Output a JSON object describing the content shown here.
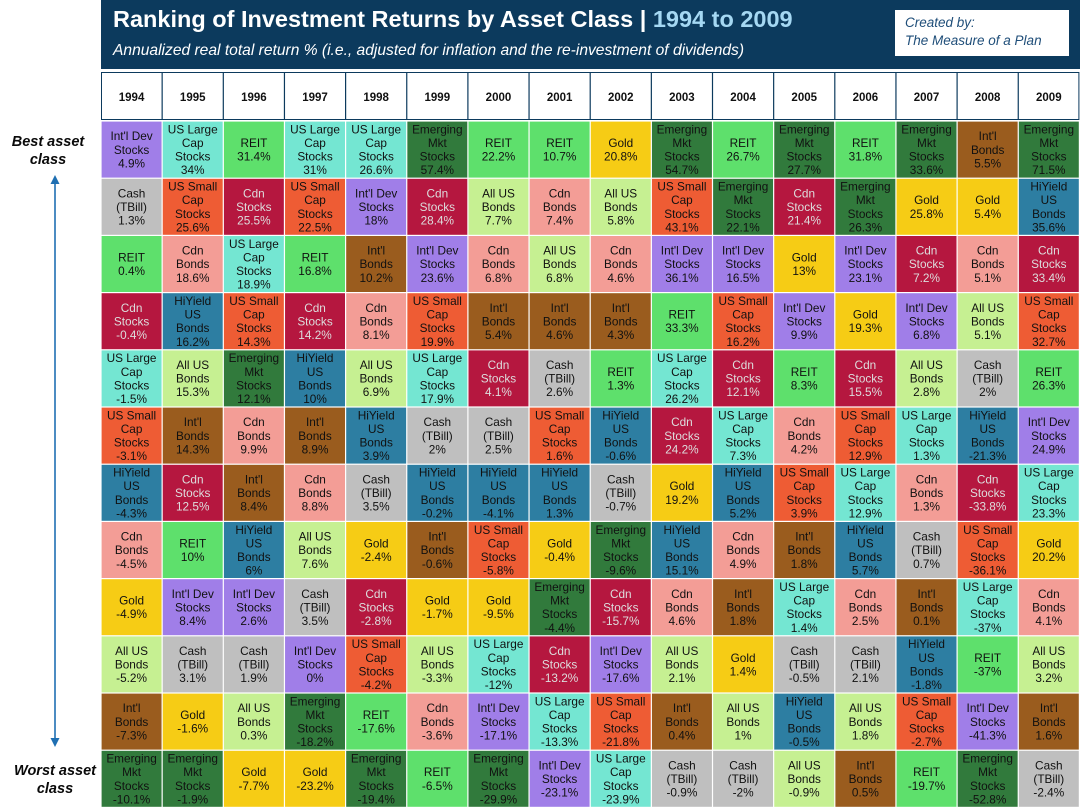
{
  "header": {
    "title_main": "Ranking of Investment Returns by Asset Class | ",
    "title_years": "1994 to 2009",
    "subtitle": "Annualized real total return % (i.e., adjusted for inflation and the re-investment of dividends)",
    "credit_line1": "Created by:",
    "credit_line2": "The Measure of a Plan"
  },
  "side_labels": {
    "best": "Best asset\nclass",
    "worst": "Worst asset\nclass"
  },
  "asset_colors": {
    "Int'l Dev Stocks": "#a07ee8",
    "US Large Cap Stocks": "#74e6d2",
    "REIT": "#5ee06c",
    "Emerging Mkt Stocks": "#317a3c",
    "Int'l Bonds": "#9a5c1e",
    "Cash (TBill)": "#bfbfbf",
    "US Small Cap Stocks": "#ee5c34",
    "Cdn Stocks": "#b5173f",
    "All US Bonds": "#c6f092",
    "Gold": "#f6cc15",
    "HiYield US Bonds": "#2d7ea2",
    "Cdn Bonds": "#f39d96"
  },
  "light_text_assets": [
    "Cdn Stocks"
  ],
  "chart_data": {
    "type": "table",
    "title": "Ranking of Investment Returns by Asset Class | 1994 to 2009",
    "subtitle": "Annualized real total return % (i.e., adjusted for inflation and the re-investment of dividends)",
    "years": [
      "1994",
      "1995",
      "1996",
      "1997",
      "1998",
      "1999",
      "2000",
      "2001",
      "2002",
      "2003",
      "2004",
      "2005",
      "2006",
      "2007",
      "2008",
      "2009"
    ],
    "columns": [
      [
        [
          "Int'l Dev Stocks",
          "4.9%"
        ],
        [
          "Cash (TBill)",
          "1.3%"
        ],
        [
          "REIT",
          "0.4%"
        ],
        [
          "Cdn Stocks",
          "-0.4%"
        ],
        [
          "US Large Cap Stocks",
          "-1.5%"
        ],
        [
          "US Small Cap Stocks",
          "-3.1%"
        ],
        [
          "HiYield US Bonds",
          "-4.3%"
        ],
        [
          "Cdn Bonds",
          "-4.5%"
        ],
        [
          "Gold",
          "-4.9%"
        ],
        [
          "All US Bonds",
          "-5.2%"
        ],
        [
          "Int'l Bonds",
          "-7.3%"
        ],
        [
          "Emerging Mkt Stocks",
          "-10.1%"
        ]
      ],
      [
        [
          "US Large Cap Stocks",
          "34%"
        ],
        [
          "US Small Cap Stocks",
          "25.6%"
        ],
        [
          "Cdn Bonds",
          "18.6%"
        ],
        [
          "HiYield US Bonds",
          "16.2%"
        ],
        [
          "All US Bonds",
          "15.3%"
        ],
        [
          "Int'l Bonds",
          "14.3%"
        ],
        [
          "Cdn Stocks",
          "12.5%"
        ],
        [
          "REIT",
          "10%"
        ],
        [
          "Int'l Dev Stocks",
          "8.4%"
        ],
        [
          "Cash (TBill)",
          "3.1%"
        ],
        [
          "Gold",
          "-1.6%"
        ],
        [
          "Emerging Mkt Stocks",
          "-1.9%"
        ]
      ],
      [
        [
          "REIT",
          "31.4%"
        ],
        [
          "Cdn Stocks",
          "25.5%"
        ],
        [
          "US Large Cap Stocks",
          "18.9%"
        ],
        [
          "US Small Cap Stocks",
          "14.3%"
        ],
        [
          "Emerging Mkt Stocks",
          "12.1%"
        ],
        [
          "Cdn Bonds",
          "9.9%"
        ],
        [
          "Int'l Bonds",
          "8.4%"
        ],
        [
          "HiYield US Bonds",
          "6%"
        ],
        [
          "Int'l Dev Stocks",
          "2.6%"
        ],
        [
          "Cash (TBill)",
          "1.9%"
        ],
        [
          "All US Bonds",
          "0.3%"
        ],
        [
          "Gold",
          "-7.7%"
        ]
      ],
      [
        [
          "US Large Cap Stocks",
          "31%"
        ],
        [
          "US Small Cap Stocks",
          "22.5%"
        ],
        [
          "REIT",
          "16.8%"
        ],
        [
          "Cdn Stocks",
          "14.2%"
        ],
        [
          "HiYield US Bonds",
          "10%"
        ],
        [
          "Int'l Bonds",
          "8.9%"
        ],
        [
          "Cdn Bonds",
          "8.8%"
        ],
        [
          "All US Bonds",
          "7.6%"
        ],
        [
          "Cash (TBill)",
          "3.5%"
        ],
        [
          "Int'l Dev Stocks",
          "0%"
        ],
        [
          "Emerging Mkt Stocks",
          "-18.2%"
        ],
        [
          "Gold",
          "-23.2%"
        ]
      ],
      [
        [
          "US Large Cap Stocks",
          "26.6%"
        ],
        [
          "Int'l Dev Stocks",
          "18%"
        ],
        [
          "Int'l Bonds",
          "10.2%"
        ],
        [
          "Cdn Bonds",
          "8.1%"
        ],
        [
          "All US Bonds",
          "6.9%"
        ],
        [
          "HiYield US Bonds",
          "3.9%"
        ],
        [
          "Cash (TBill)",
          "3.5%"
        ],
        [
          "Gold",
          "-2.4%"
        ],
        [
          "Cdn Stocks",
          "-2.8%"
        ],
        [
          "US Small Cap Stocks",
          "-4.2%"
        ],
        [
          "REIT",
          "-17.6%"
        ],
        [
          "Emerging Mkt Stocks",
          "-19.4%"
        ]
      ],
      [
        [
          "Emerging Mkt Stocks",
          "57.4%"
        ],
        [
          "Cdn Stocks",
          "28.4%"
        ],
        [
          "Int'l Dev Stocks",
          "23.6%"
        ],
        [
          "US Small Cap Stocks",
          "19.9%"
        ],
        [
          "US Large Cap Stocks",
          "17.9%"
        ],
        [
          "Cash (TBill)",
          "2%"
        ],
        [
          "HiYield US Bonds",
          "-0.2%"
        ],
        [
          "Int'l Bonds",
          "-0.6%"
        ],
        [
          "Gold",
          "-1.7%"
        ],
        [
          "All US Bonds",
          "-3.3%"
        ],
        [
          "Cdn Bonds",
          "-3.6%"
        ],
        [
          "REIT",
          "-6.5%"
        ]
      ],
      [
        [
          "REIT",
          "22.2%"
        ],
        [
          "All US Bonds",
          "7.7%"
        ],
        [
          "Cdn Bonds",
          "6.8%"
        ],
        [
          "Int'l Bonds",
          "5.4%"
        ],
        [
          "Cdn Stocks",
          "4.1%"
        ],
        [
          "Cash (TBill)",
          "2.5%"
        ],
        [
          "HiYield US Bonds",
          "-4.1%"
        ],
        [
          "US Small Cap Stocks",
          "-5.8%"
        ],
        [
          "Gold",
          "-9.5%"
        ],
        [
          "US Large Cap Stocks",
          "-12%"
        ],
        [
          "Int'l Dev Stocks",
          "-17.1%"
        ],
        [
          "Emerging Mkt Stocks",
          "-29.9%"
        ]
      ],
      [
        [
          "REIT",
          "10.7%"
        ],
        [
          "Cdn Bonds",
          "7.4%"
        ],
        [
          "All US Bonds",
          "6.8%"
        ],
        [
          "Int'l Bonds",
          "4.6%"
        ],
        [
          "Cash (TBill)",
          "2.6%"
        ],
        [
          "US Small Cap Stocks",
          "1.6%"
        ],
        [
          "HiYield US Bonds",
          "1.3%"
        ],
        [
          "Gold",
          "-0.4%"
        ],
        [
          "Emerging Mkt Stocks",
          "-4.4%"
        ],
        [
          "Cdn Stocks",
          "-13.2%"
        ],
        [
          "US Large Cap Stocks",
          "-13.3%"
        ],
        [
          "Int'l Dev Stocks",
          "-23.1%"
        ]
      ],
      [
        [
          "Gold",
          "20.8%"
        ],
        [
          "All US Bonds",
          "5.8%"
        ],
        [
          "Cdn Bonds",
          "4.6%"
        ],
        [
          "Int'l Bonds",
          "4.3%"
        ],
        [
          "REIT",
          "1.3%"
        ],
        [
          "HiYield US Bonds",
          "-0.6%"
        ],
        [
          "Cash (TBill)",
          "-0.7%"
        ],
        [
          "Emerging Mkt Stocks",
          "-9.6%"
        ],
        [
          "Cdn Stocks",
          "-15.7%"
        ],
        [
          "Int'l Dev Stocks",
          "-17.6%"
        ],
        [
          "US Small Cap Stocks",
          "-21.8%"
        ],
        [
          "US Large Cap Stocks",
          "-23.9%"
        ]
      ],
      [
        [
          "Emerging Mkt Stocks",
          "54.7%"
        ],
        [
          "US Small Cap Stocks",
          "43.1%"
        ],
        [
          "Int'l Dev Stocks",
          "36.1%"
        ],
        [
          "REIT",
          "33.3%"
        ],
        [
          "US Large Cap Stocks",
          "26.2%"
        ],
        [
          "Cdn Stocks",
          "24.2%"
        ],
        [
          "Gold",
          "19.2%"
        ],
        [
          "HiYield US Bonds",
          "15.1%"
        ],
        [
          "Cdn Bonds",
          "4.6%"
        ],
        [
          "All US Bonds",
          "2.1%"
        ],
        [
          "Int'l Bonds",
          "0.4%"
        ],
        [
          "Cash (TBill)",
          "-0.9%"
        ]
      ],
      [
        [
          "REIT",
          "26.7%"
        ],
        [
          "Emerging Mkt Stocks",
          "22.1%"
        ],
        [
          "Int'l Dev Stocks",
          "16.5%"
        ],
        [
          "US Small Cap Stocks",
          "16.2%"
        ],
        [
          "Cdn Stocks",
          "12.1%"
        ],
        [
          "US Large Cap Stocks",
          "7.3%"
        ],
        [
          "HiYield US Bonds",
          "5.2%"
        ],
        [
          "Cdn Bonds",
          "4.9%"
        ],
        [
          "Int'l Bonds",
          "1.8%"
        ],
        [
          "Gold",
          "1.4%"
        ],
        [
          "All US Bonds",
          "1%"
        ],
        [
          "Cash (TBill)",
          "-2%"
        ]
      ],
      [
        [
          "Emerging Mkt Stocks",
          "27.7%"
        ],
        [
          "Cdn Stocks",
          "21.4%"
        ],
        [
          "Gold",
          "13%"
        ],
        [
          "Int'l Dev Stocks",
          "9.9%"
        ],
        [
          "REIT",
          "8.3%"
        ],
        [
          "Cdn Bonds",
          "4.2%"
        ],
        [
          "US Small Cap Stocks",
          "3.9%"
        ],
        [
          "Int'l Bonds",
          "1.8%"
        ],
        [
          "US Large Cap Stocks",
          "1.4%"
        ],
        [
          "Cash (TBill)",
          "-0.5%"
        ],
        [
          "HiYield US Bonds",
          "-0.5%"
        ],
        [
          "All US Bonds",
          "-0.9%"
        ]
      ],
      [
        [
          "REIT",
          "31.8%"
        ],
        [
          "Emerging Mkt Stocks",
          "26.3%"
        ],
        [
          "Int'l Dev Stocks",
          "23.1%"
        ],
        [
          "Gold",
          "19.3%"
        ],
        [
          "Cdn Stocks",
          "15.5%"
        ],
        [
          "US Small Cap Stocks",
          "12.9%"
        ],
        [
          "US Large Cap Stocks",
          "12.9%"
        ],
        [
          "HiYield US Bonds",
          "5.7%"
        ],
        [
          "Cdn Bonds",
          "2.5%"
        ],
        [
          "Cash (TBill)",
          "2.1%"
        ],
        [
          "All US Bonds",
          "1.8%"
        ],
        [
          "Int'l Bonds",
          "0.5%"
        ]
      ],
      [
        [
          "Emerging Mkt Stocks",
          "33.6%"
        ],
        [
          "Gold",
          "25.8%"
        ],
        [
          "Cdn Stocks",
          "7.2%"
        ],
        [
          "Int'l Dev Stocks",
          "6.8%"
        ],
        [
          "All US Bonds",
          "2.8%"
        ],
        [
          "US Large Cap Stocks",
          "1.3%"
        ],
        [
          "Cdn Bonds",
          "1.3%"
        ],
        [
          "Cash (TBill)",
          "0.7%"
        ],
        [
          "Int'l Bonds",
          "0.1%"
        ],
        [
          "HiYield US Bonds",
          "-1.8%"
        ],
        [
          "US Small Cap Stocks",
          "-2.7%"
        ],
        [
          "REIT",
          "-19.7%"
        ]
      ],
      [
        [
          "Int'l Bonds",
          "5.5%"
        ],
        [
          "Gold",
          "5.4%"
        ],
        [
          "Cdn Bonds",
          "5.1%"
        ],
        [
          "All US Bonds",
          "5.1%"
        ],
        [
          "Cash (TBill)",
          "2%"
        ],
        [
          "HiYield US Bonds",
          "-21.3%"
        ],
        [
          "Cdn Stocks",
          "-33.8%"
        ],
        [
          "US Small Cap Stocks",
          "-36.1%"
        ],
        [
          "US Large Cap Stocks",
          "-37%"
        ],
        [
          "REIT",
          "-37%"
        ],
        [
          "Int'l Dev Stocks",
          "-41.3%"
        ],
        [
          "Emerging Mkt Stocks",
          "-52.8%"
        ]
      ],
      [
        [
          "Emerging Mkt Stocks",
          "71.5%"
        ],
        [
          "HiYield US Bonds",
          "35.6%"
        ],
        [
          "Cdn Stocks",
          "33.4%"
        ],
        [
          "US Small Cap Stocks",
          "32.7%"
        ],
        [
          "REIT",
          "26.3%"
        ],
        [
          "Int'l Dev Stocks",
          "24.9%"
        ],
        [
          "US Large Cap Stocks",
          "23.3%"
        ],
        [
          "Gold",
          "20.2%"
        ],
        [
          "Cdn Bonds",
          "4.1%"
        ],
        [
          "All US Bonds",
          "3.2%"
        ],
        [
          "Int'l Bonds",
          "1.6%"
        ],
        [
          "Cash (TBill)",
          "-2.4%"
        ]
      ]
    ]
  }
}
